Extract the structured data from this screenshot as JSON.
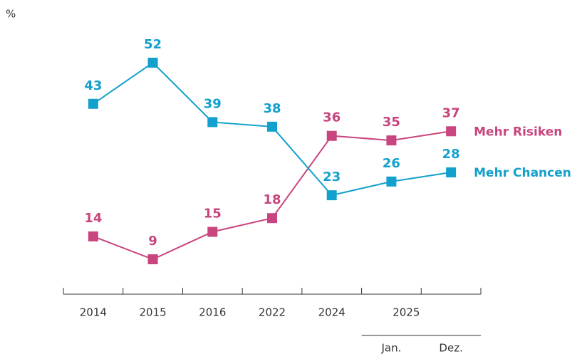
{
  "chart_data": {
    "type": "line",
    "ylabel": "%",
    "categories": [
      "2014",
      "2015",
      "2016",
      "2022",
      "2024",
      "Jan.",
      "Dez."
    ],
    "x_groups": [
      {
        "label": "2025",
        "members": [
          5,
          6
        ]
      }
    ],
    "series": [
      {
        "name": "Mehr Risiken",
        "color": "#c8457f",
        "values": [
          14,
          9,
          15,
          18,
          36,
          35,
          37
        ]
      },
      {
        "name": "Mehr Chancen",
        "color": "#12a0cc",
        "values": [
          43,
          52,
          39,
          38,
          23,
          26,
          28
        ]
      }
    ],
    "marker": "square",
    "grid": false
  }
}
